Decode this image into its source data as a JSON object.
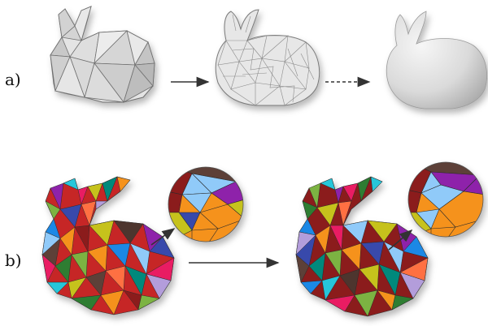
{
  "rows": [
    {
      "label": "a)",
      "stages": [
        "coarse-faceted-bunny",
        "subdivided-bunny",
        "smooth-limit-bunny"
      ],
      "arrows": [
        "solid-arrow",
        "dashed-arrow"
      ]
    },
    {
      "label": "b)",
      "stages": [
        "color-faceted-bunny-coarse",
        "color-faceted-bunny-refined"
      ],
      "arrows": [
        "solid-arrow"
      ],
      "callouts": [
        "zoom-detail-left",
        "zoom-detail-right"
      ]
    }
  ],
  "colors": {
    "mesh_gray_light": "#e8e8e8",
    "mesh_gray_mid": "#cfcfcf",
    "mesh_gray_dark": "#a9a9a9",
    "edge_gray": "#7a7a7a",
    "arrow": "#333333",
    "palette": [
      "#8b1a1a",
      "#f5921e",
      "#8e24aa",
      "#2e7d32",
      "#1e88e5",
      "#90caf9",
      "#c6c21a",
      "#5d4037",
      "#e91e63",
      "#26c6da",
      "#7cb342",
      "#3949ab",
      "#ff7043",
      "#4e342e",
      "#b39ddb",
      "#00897b"
    ]
  }
}
